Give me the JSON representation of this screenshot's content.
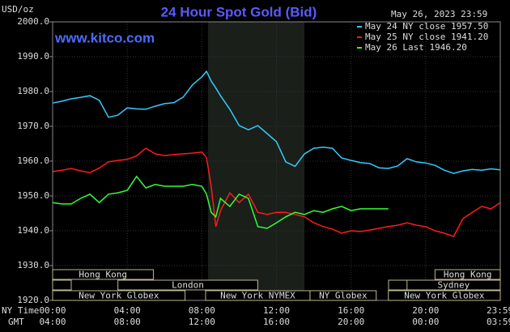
{
  "chart_data": {
    "type": "line",
    "title": "24 Hour Spot Gold (Bid)",
    "watermark": "www.kitco.com",
    "timestamp": "May 26, 2023 23:59",
    "y_label": "USD/oz",
    "x_label": "NY Time",
    "x2_label": "GMT",
    "x": [
      0,
      0.5,
      1,
      1.5,
      2,
      2.5,
      3,
      3.5,
      4,
      4.5,
      5,
      5.5,
      6,
      6.5,
      7,
      7.5,
      8,
      8.25,
      8.5,
      8.75,
      9,
      9.5,
      10,
      10.5,
      11,
      11.5,
      12,
      12.5,
      13,
      13.5,
      14,
      14.5,
      15,
      15.5,
      16,
      16.5,
      17,
      17.5,
      18,
      18.5,
      19,
      19.5,
      20,
      20.5,
      21,
      21.5,
      22,
      22.5,
      23,
      23.5,
      24
    ],
    "series": [
      {
        "name": "May 24 NY close 1957.50",
        "color": "#33ccff",
        "values": [
          1976.7,
          1977.2,
          1977.9,
          1978.3,
          1978.8,
          1977.5,
          1972.6,
          1973.2,
          1975.3,
          1975.0,
          1974.9,
          1975.8,
          1976.5,
          1976.8,
          1978.4,
          1981.9,
          1984.2,
          1985.8,
          1983.0,
          1981.0,
          1978.8,
          1974.9,
          1970.2,
          1969.0,
          1970.2,
          1967.9,
          1965.6,
          1959.8,
          1958.5,
          1962.1,
          1963.7,
          1964.0,
          1963.7,
          1960.9,
          1960.2,
          1959.6,
          1959.3,
          1958.1,
          1957.9,
          1958.6,
          1960.7,
          1959.8,
          1959.5,
          1958.8,
          1957.4,
          1956.5,
          1957.2,
          1957.6,
          1957.4,
          1957.8,
          1957.5
        ]
      },
      {
        "name": "May 25 NY close 1941.20",
        "color": "#ff1a1a",
        "values": [
          1957.0,
          1957.4,
          1957.9,
          1957.2,
          1956.7,
          1958.0,
          1959.8,
          1960.2,
          1960.5,
          1961.5,
          1963.7,
          1962.1,
          1961.6,
          1961.9,
          1962.1,
          1962.3,
          1962.6,
          1961.0,
          1952.8,
          1941.2,
          1945.8,
          1950.9,
          1948.1,
          1950.5,
          1945.3,
          1944.7,
          1945.3,
          1945.3,
          1944.7,
          1944.0,
          1942.3,
          1941.2,
          1940.5,
          1939.3,
          1940.0,
          1939.8,
          1940.2,
          1940.7,
          1941.2,
          1941.6,
          1942.3,
          1941.6,
          1941.2,
          1940.0,
          1939.3,
          1938.4,
          1943.5,
          1945.3,
          1947.0,
          1946.3,
          1948.1
        ]
      },
      {
        "name": "May 26 Last 1946.20",
        "color": "#33ff33",
        "values": [
          1948.1,
          1947.7,
          1947.7,
          1949.3,
          1950.5,
          1948.1,
          1950.5,
          1950.9,
          1951.6,
          1955.6,
          1952.3,
          1953.3,
          1952.8,
          1952.8,
          1952.8,
          1953.3,
          1952.8,
          1950.5,
          1945.3,
          1944.0,
          1949.3,
          1947.0,
          1950.5,
          1949.3,
          1941.2,
          1940.7,
          1942.3,
          1944.0,
          1945.3,
          1944.7,
          1945.8,
          1945.3,
          1946.3,
          1947.0,
          1945.8,
          1946.3,
          1946.3,
          1946.3,
          1946.3,
          null,
          null,
          null,
          null,
          null,
          null,
          null,
          null,
          null,
          null,
          null,
          null
        ]
      }
    ],
    "xlim": [
      0,
      24
    ],
    "xticks": [
      {
        "value": 0,
        "label": "00:00"
      },
      {
        "value": 4,
        "label": "04:00"
      },
      {
        "value": 8,
        "label": "08:00"
      },
      {
        "value": 12,
        "label": "12:00"
      },
      {
        "value": 16,
        "label": "16:00"
      },
      {
        "value": 20,
        "label": "20:00"
      },
      {
        "value": 23.983,
        "label": "23:59"
      }
    ],
    "gmt_labels": [
      "04:00",
      "08:00",
      "12:00",
      "16:00",
      "20:00",
      "00:00",
      "03:59"
    ],
    "ylim": [
      1920,
      2000
    ],
    "yticks": [
      {
        "value": 1920,
        "label": "1920.0"
      },
      {
        "value": 1930,
        "label": "1930.0"
      },
      {
        "value": 1940,
        "label": "1940.0"
      },
      {
        "value": 1950,
        "label": "1950.0"
      },
      {
        "value": 1960,
        "label": "1960.0"
      },
      {
        "value": 1970,
        "label": "1970.0"
      },
      {
        "value": 1980,
        "label": "1980.0"
      },
      {
        "value": 1990,
        "label": "1990.0"
      },
      {
        "value": 2000,
        "label": "2000.0"
      }
    ],
    "grid": true,
    "shaded_region": [
      8.33,
      13.5
    ],
    "sessions": [
      {
        "name": "Hong Kong",
        "start": 0,
        "end": 5.4,
        "row": 0
      },
      {
        "name": "London",
        "start": 3.5,
        "end": 11.0,
        "row": 1
      },
      {
        "name": "New York Globex",
        "start": 0,
        "end": 7.1,
        "row": 2
      },
      {
        "name": "New York NYMEX",
        "start": 8.2,
        "end": 13.8,
        "row": 2
      },
      {
        "name": "NY Globex",
        "start": 13.8,
        "end": 17.35,
        "row": 2
      },
      {
        "name": "Sydney",
        "start": 19.0,
        "end": 24,
        "row": 1
      },
      {
        "name": "Hong Kong",
        "start": 20.5,
        "end": 24,
        "row": 0
      },
      {
        "name": "New York Globex",
        "start": 18.0,
        "end": 24,
        "row": 2
      }
    ]
  }
}
